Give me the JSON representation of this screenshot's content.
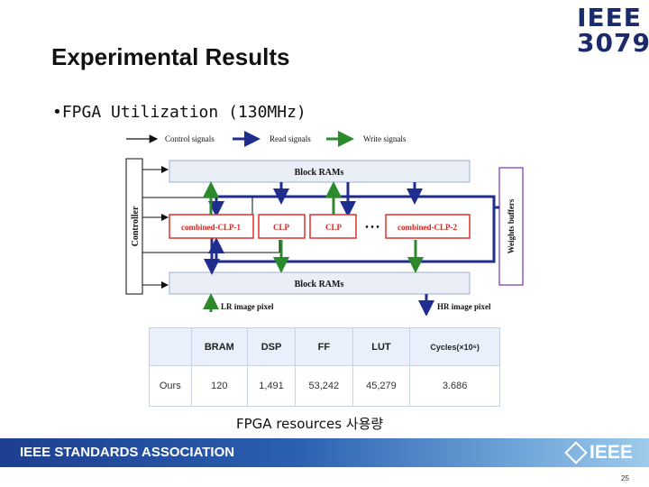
{
  "slide": {
    "title": "Experimental Results",
    "logo_line1": "IEEE",
    "logo_line2": "3079",
    "bullet": "FPGA Utilization (130MHz)",
    "caption": "FPGA resources 사용량",
    "footer": "IEEE STANDARDS ASSOCIATION",
    "footer_logo": "IEEE",
    "page_number": "25"
  },
  "diagram": {
    "legend": {
      "control": "Control signals",
      "read": "Read signals",
      "write": "Write signals"
    },
    "controller": "Controller",
    "top_block": "Block RAMs",
    "bottom_block": "Block RAMs",
    "weights": "Weights buffers",
    "clp_first": "combined-CLP-1",
    "clp_a": "CLP",
    "clp_b": "CLP",
    "ellipsis": "• • •",
    "clp_last": "combined-CLP-2",
    "input_label": "LR image pixel",
    "output_label": "HR image pixel",
    "colors": {
      "read": "#1f2d8f",
      "write": "#2c8a2c",
      "clp_border": "#e0302a",
      "weights_border": "#8b5cc7",
      "block": "#e9eef7"
    }
  },
  "table": {
    "headers": [
      "",
      "BRAM",
      "DSP",
      "FF",
      "LUT",
      "Cycles(×10⁶)"
    ],
    "row": [
      "Ours",
      "120",
      "1,491",
      "53,242",
      "45,279",
      "3.686"
    ]
  }
}
